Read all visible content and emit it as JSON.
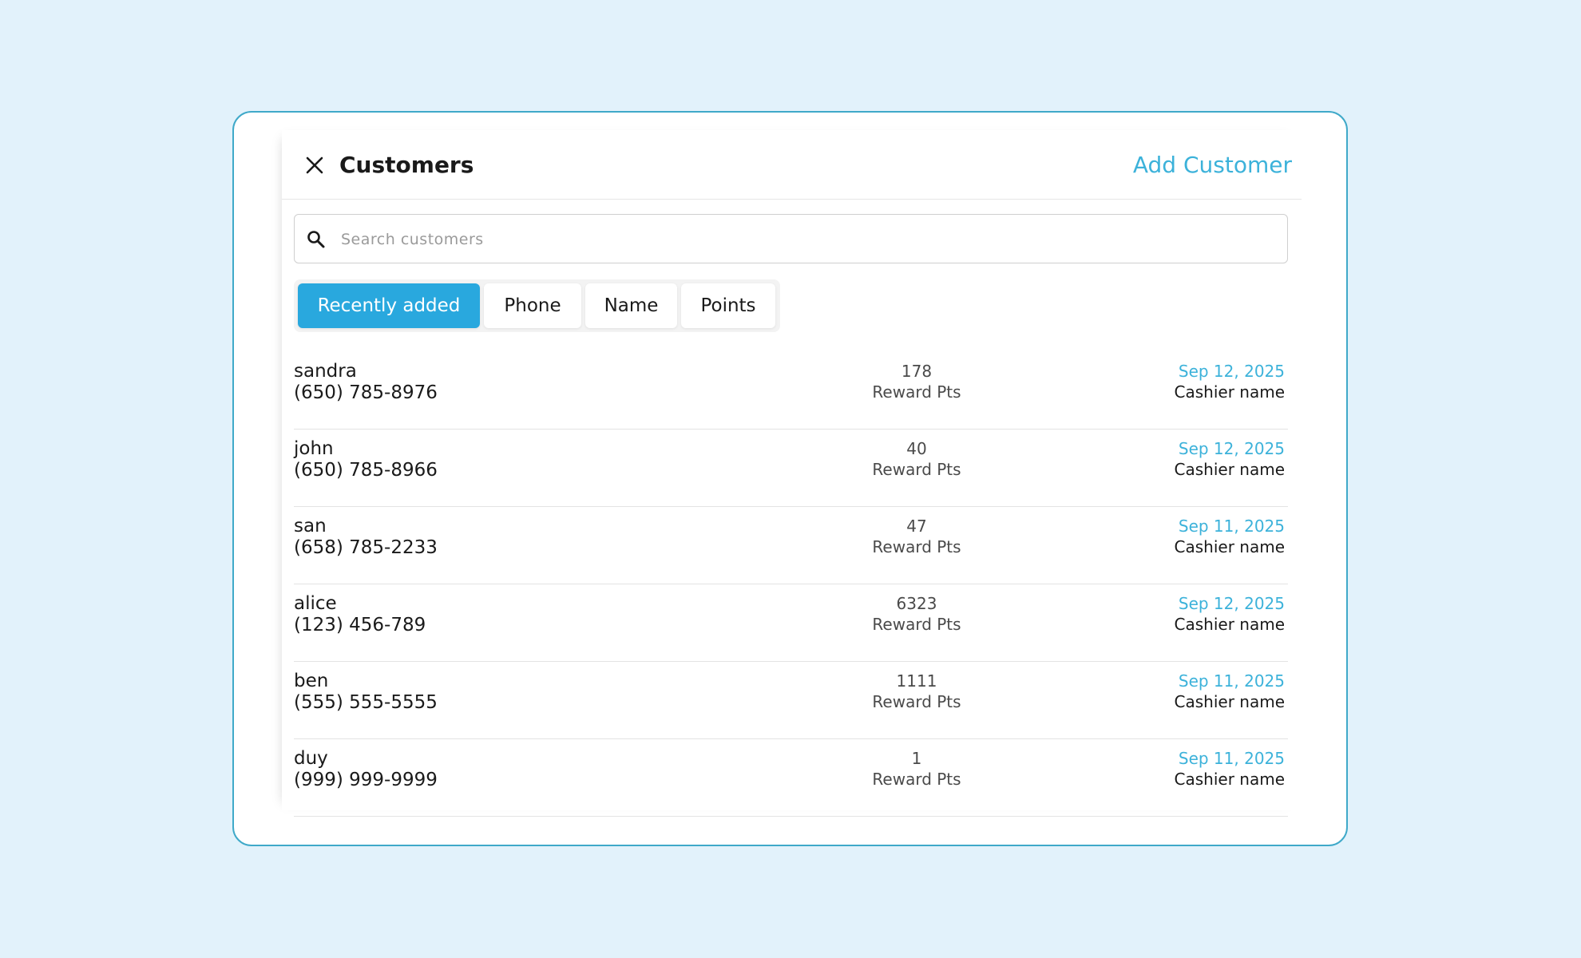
{
  "header": {
    "title": "Customers",
    "add_label": "Add Customer",
    "close_icon": "close-icon"
  },
  "search": {
    "placeholder": "Search customers",
    "value": "",
    "icon": "search-icon"
  },
  "tabs": [
    {
      "label": "Recently added",
      "active": true
    },
    {
      "label": "Phone",
      "active": false
    },
    {
      "label": "Name",
      "active": false
    },
    {
      "label": "Points",
      "active": false
    }
  ],
  "customers": [
    {
      "name": "sandra",
      "phone": "(650) 785-8976",
      "points": "178",
      "points_label": "Reward Pts",
      "date": "Sep 12, 2025",
      "cashier": "Cashier name"
    },
    {
      "name": "john",
      "phone": "(650) 785-8966",
      "points": "40",
      "points_label": "Reward Pts",
      "date": "Sep 12, 2025",
      "cashier": "Cashier name"
    },
    {
      "name": "san",
      "phone": "(658) 785-2233",
      "points": "47",
      "points_label": "Reward Pts",
      "date": "Sep 11, 2025",
      "cashier": "Cashier name"
    },
    {
      "name": "alice",
      "phone": "(123) 456-789",
      "points": "6323",
      "points_label": "Reward Pts",
      "date": "Sep 12, 2025",
      "cashier": "Cashier name"
    },
    {
      "name": "ben",
      "phone": "(555) 555-5555",
      "points": "1111",
      "points_label": "Reward Pts",
      "date": "Sep 11, 2025",
      "cashier": "Cashier name"
    },
    {
      "name": "duy",
      "phone": "(999) 999-9999",
      "points": "1",
      "points_label": "Reward Pts",
      "date": "Sep 11, 2025",
      "cashier": "Cashier name"
    }
  ],
  "colors": {
    "accent": "#29a8de",
    "link": "#3cb2da",
    "background": "#e2f2fb",
    "card_border": "#3fa9c9"
  }
}
